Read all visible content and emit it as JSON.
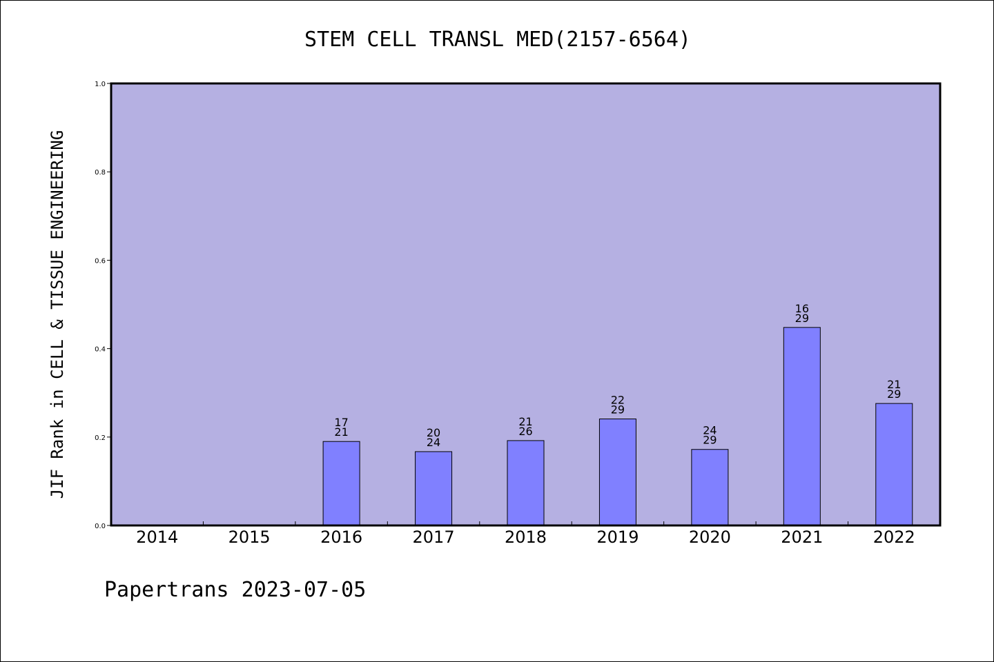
{
  "title": "STEM CELL TRANSL MED(2157-6564)",
  "footer": "Papertrans 2023-07-05",
  "colors": {
    "plot_background": "#b5b0e2",
    "bar_fill": "#8080ff",
    "bar_stroke": "#000000",
    "frame": "#000000"
  },
  "chart_data": {
    "type": "bar",
    "title": "STEM CELL TRANSL MED(2157-6564)",
    "xlabel": "",
    "ylabel": "JIF Rank in CELL & TISSUE ENGINEERING",
    "ylim": [
      0,
      1.0
    ],
    "yticks": [
      "0.0",
      "0.2",
      "0.4",
      "0.6",
      "0.8",
      "1.0"
    ],
    "grid": false,
    "legend": "none",
    "categories": [
      "2014",
      "2015",
      "2016",
      "2017",
      "2018",
      "2019",
      "2020",
      "2021",
      "2022"
    ],
    "values": [
      null,
      null,
      0.19,
      0.167,
      0.192,
      0.241,
      0.172,
      0.448,
      0.276
    ],
    "rank": [
      null,
      null,
      "17",
      "20",
      "21",
      "22",
      "24",
      "16",
      "21"
    ],
    "total": [
      null,
      null,
      "21",
      "24",
      "26",
      "29",
      "29",
      "29",
      "29"
    ]
  }
}
